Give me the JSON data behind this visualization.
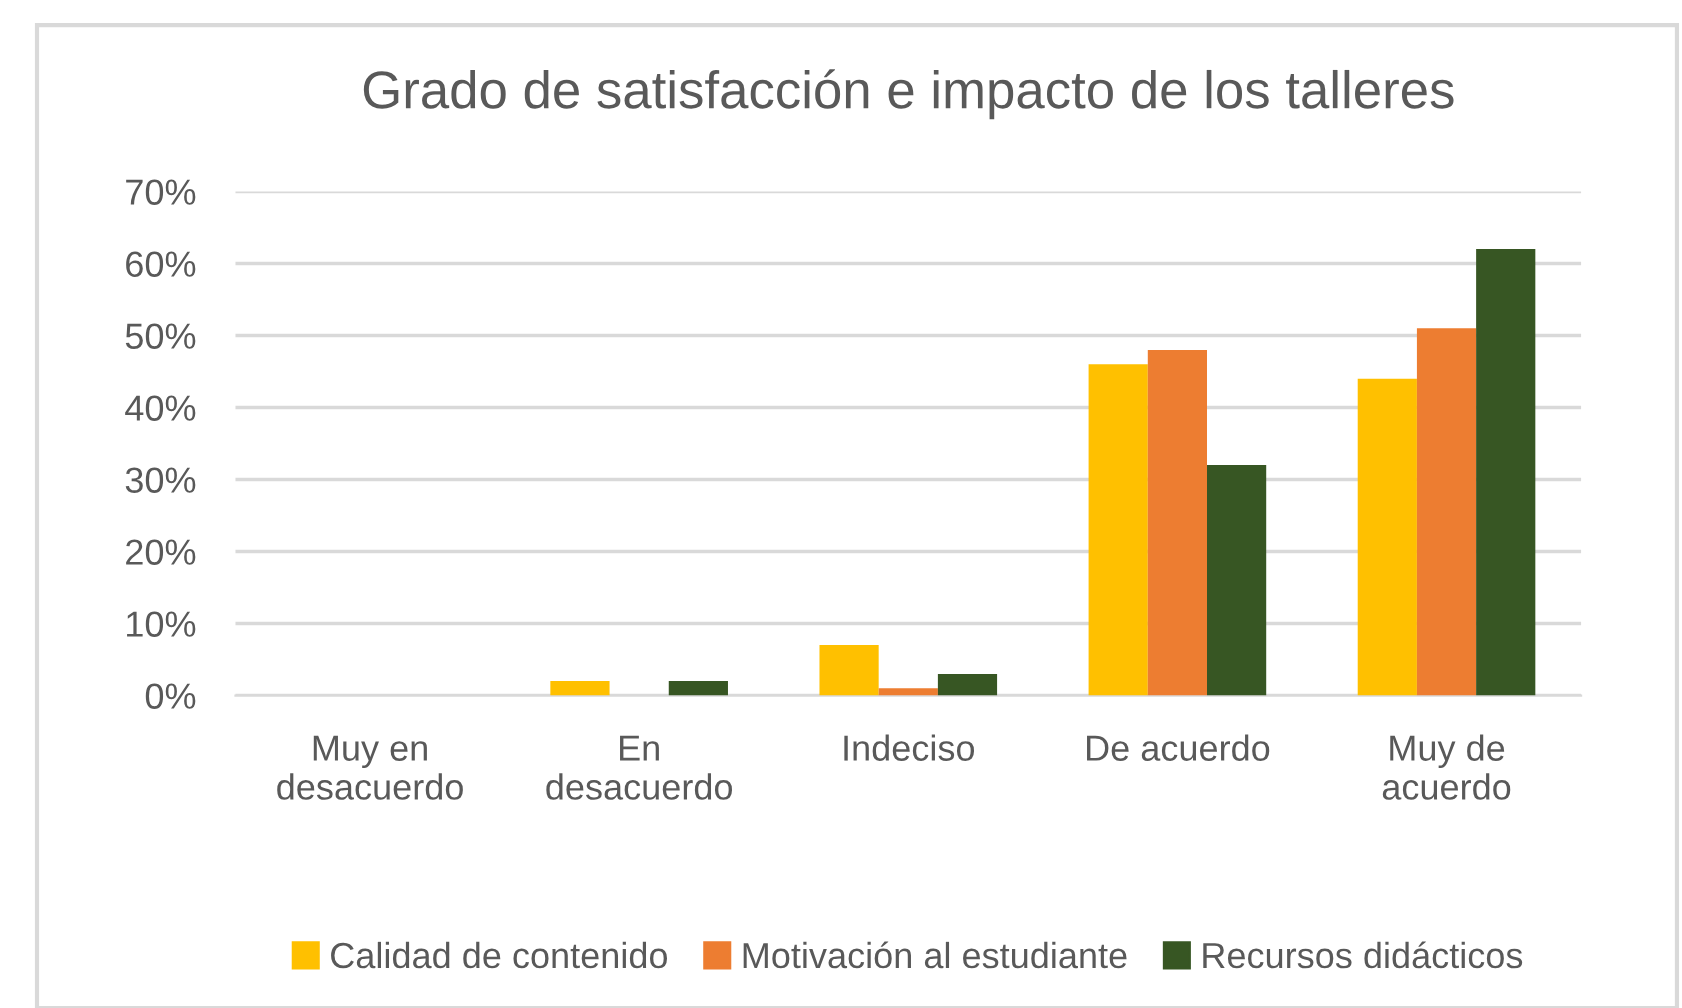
{
  "chart_data": {
    "type": "bar",
    "title": "Grado de satisfacción e impacto de los talleres",
    "categories": [
      "Muy en\ndesacuerdo",
      "En\ndesacuerdo",
      "Indeciso",
      "De acuerdo",
      "Muy de\nacuerdo"
    ],
    "series": [
      {
        "name": "Calidad de contenido",
        "color": "#ffc000",
        "values": [
          0,
          2,
          7,
          46,
          44
        ]
      },
      {
        "name": "Motivación al estudiante",
        "color": "#ed7d31",
        "values": [
          0,
          0,
          1,
          48,
          51
        ]
      },
      {
        "name": "Recursos didácticos",
        "color": "#375623",
        "values": [
          0,
          2,
          3,
          32,
          62
        ]
      }
    ],
    "ylim": [
      0,
      70
    ],
    "yticks": [
      {
        "value": 0,
        "label": "0%"
      },
      {
        "value": 10,
        "label": "10%"
      },
      {
        "value": 20,
        "label": "20%"
      },
      {
        "value": 30,
        "label": "30%"
      },
      {
        "value": 40,
        "label": "40%"
      },
      {
        "value": 50,
        "label": "50%"
      },
      {
        "value": 60,
        "label": "60%"
      },
      {
        "value": 70,
        "label": "70%"
      }
    ],
    "grid": "y",
    "legend": "bottom"
  }
}
